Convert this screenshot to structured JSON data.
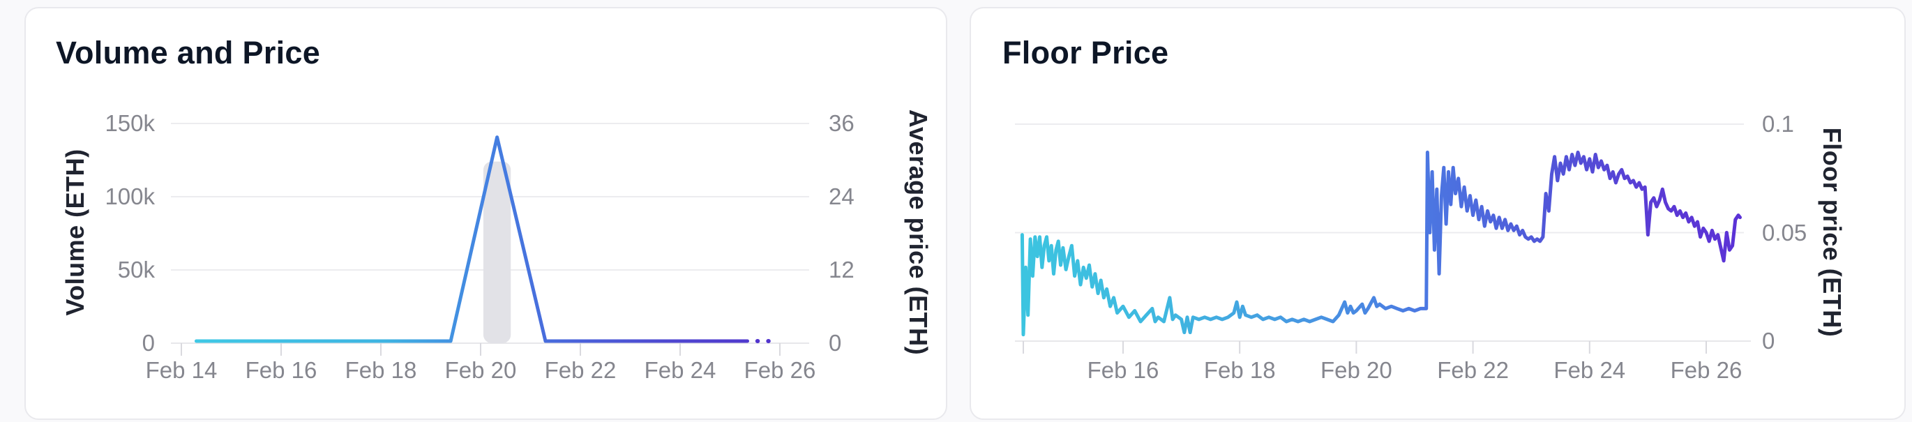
{
  "volume_price_card": {
    "title": "Volume and Price",
    "left_axis": {
      "title": "Volume (ETH)",
      "tick_labels": [
        "150k",
        "100k",
        "50k",
        "0"
      ],
      "tick_values": [
        150000,
        100000,
        50000,
        0
      ]
    },
    "right_axis": {
      "title": "Average price (ETH)",
      "tick_labels": [
        "36",
        "24",
        "12",
        "0"
      ],
      "tick_values": [
        36,
        24,
        12,
        0
      ]
    },
    "x_axis": {
      "tick_labels": [
        "Feb 14",
        "Feb 16",
        "Feb 18",
        "Feb 20",
        "Feb 22",
        "Feb 24",
        "Feb 26"
      ],
      "tick_days": [
        14,
        16,
        18,
        20,
        22,
        24,
        26
      ]
    }
  },
  "floor_price_card": {
    "title": "Floor Price",
    "right_axis": {
      "title": "Floor price (ETH)",
      "tick_labels": [
        "0.1",
        "0.05",
        "0"
      ],
      "tick_values": [
        0.1,
        0.05,
        0
      ]
    },
    "x_axis": {
      "tick_labels": [
        "Feb 16",
        "Feb 18",
        "Feb 20",
        "Feb 22",
        "Feb 24",
        "Feb 26"
      ],
      "tick_days": [
        16,
        18,
        20,
        22,
        24,
        26
      ]
    }
  },
  "colors": {
    "card_bg": "#ffffff",
    "card_border": "#e9e9ed",
    "page_bg": "#f9f9fb",
    "grid": "#ececef",
    "axis_line": "#e7e7ea",
    "tick_mark": "#d9d9de",
    "tick_text": "#85868e",
    "axis_title_text": "#202430",
    "title_text": "#0d1626",
    "volume_bar": "#e2e2e7",
    "line_cyan": "#3dc6e3",
    "line_blue": "#4579e1",
    "line_purple": "#5133cd"
  },
  "chart_data": [
    {
      "type": "line",
      "title": "Volume and Price",
      "x_unit": "day of February",
      "x_tick_labels": [
        "Feb 14",
        "Feb 16",
        "Feb 18",
        "Feb 20",
        "Feb 22",
        "Feb 24",
        "Feb 26"
      ],
      "x_range": [
        13.95,
        26.6
      ],
      "ylabel_left": "Volume (ETH)",
      "ylim_left": [
        0,
        150000
      ],
      "yticks_left": [
        0,
        50000,
        100000,
        150000
      ],
      "ylabel_right": "Average price (ETH)",
      "ylim_right": [
        0,
        36
      ],
      "yticks_right": [
        0,
        12,
        24,
        36
      ],
      "grid": "horizontal",
      "legend": "none",
      "series": [
        {
          "name": "Volume",
          "type": "bar",
          "axis": "left",
          "color": "#e2e2e7",
          "bar_width_days": 0.55,
          "points": [
            [
              20.33,
              124000
            ]
          ]
        },
        {
          "name": "Average price",
          "type": "line",
          "axis": "right",
          "gradient": [
            "#3dc6e3",
            "#4579e1",
            "#5133cd"
          ],
          "points": [
            [
              14.3,
              0
            ],
            [
              19.4,
              0
            ],
            [
              20.33,
              33.4
            ],
            [
              21.3,
              0
            ],
            [
              25.35,
              0
            ]
          ],
          "dotted_tail": [
            [
              25.55,
              0
            ],
            [
              25.95,
              0
            ]
          ]
        }
      ]
    },
    {
      "type": "line",
      "title": "Floor Price",
      "x_unit": "day of February",
      "x_tick_labels": [
        "Feb 16",
        "Feb 18",
        "Feb 20",
        "Feb 22",
        "Feb 24",
        "Feb 26"
      ],
      "x_range": [
        14.1,
        26.9
      ],
      "ylabel": "Floor price (ETH)",
      "ylim": [
        0,
        0.1
      ],
      "yticks": [
        0,
        0.05,
        0.1
      ],
      "grid": "horizontal",
      "legend": "none",
      "series": [
        {
          "name": "Floor price",
          "type": "line",
          "gradient": [
            "#3dc6e3",
            "#4579e1",
            "#5b32d6"
          ],
          "points": [
            [
              14.27,
              0.049
            ],
            [
              14.29,
              0.003
            ],
            [
              14.33,
              0.034
            ],
            [
              14.37,
              0.012
            ],
            [
              14.41,
              0.047
            ],
            [
              14.45,
              0.03
            ],
            [
              14.49,
              0.048
            ],
            [
              14.53,
              0.039
            ],
            [
              14.57,
              0.048
            ],
            [
              14.61,
              0.034
            ],
            [
              14.65,
              0.044
            ],
            [
              14.69,
              0.048
            ],
            [
              14.73,
              0.037
            ],
            [
              14.77,
              0.044
            ],
            [
              14.81,
              0.031
            ],
            [
              14.85,
              0.042
            ],
            [
              14.89,
              0.046
            ],
            [
              14.93,
              0.035
            ],
            [
              14.97,
              0.043
            ],
            [
              15.02,
              0.033
            ],
            [
              15.07,
              0.039
            ],
            [
              15.12,
              0.044
            ],
            [
              15.17,
              0.03
            ],
            [
              15.22,
              0.037
            ],
            [
              15.27,
              0.026
            ],
            [
              15.32,
              0.034
            ],
            [
              15.37,
              0.029
            ],
            [
              15.42,
              0.035
            ],
            [
              15.47,
              0.025
            ],
            [
              15.52,
              0.031
            ],
            [
              15.57,
              0.022
            ],
            [
              15.62,
              0.028
            ],
            [
              15.67,
              0.02
            ],
            [
              15.72,
              0.024
            ],
            [
              15.78,
              0.016
            ],
            [
              15.84,
              0.02
            ],
            [
              15.9,
              0.013
            ],
            [
              16.0,
              0.016
            ],
            [
              16.1,
              0.011
            ],
            [
              16.2,
              0.014
            ],
            [
              16.3,
              0.009
            ],
            [
              16.4,
              0.012
            ],
            [
              16.5,
              0.015
            ],
            [
              16.55,
              0.009
            ],
            [
              16.6,
              0.011
            ],
            [
              16.7,
              0.009
            ],
            [
              16.8,
              0.02
            ],
            [
              16.85,
              0.01
            ],
            [
              16.9,
              0.012
            ],
            [
              17.0,
              0.01
            ],
            [
              17.05,
              0.004
            ],
            [
              17.1,
              0.011
            ],
            [
              17.15,
              0.004
            ],
            [
              17.2,
              0.011
            ],
            [
              17.3,
              0.01
            ],
            [
              17.4,
              0.011
            ],
            [
              17.5,
              0.01
            ],
            [
              17.6,
              0.011
            ],
            [
              17.7,
              0.01
            ],
            [
              17.8,
              0.011
            ],
            [
              17.9,
              0.013
            ],
            [
              17.95,
              0.018
            ],
            [
              18.0,
              0.011
            ],
            [
              18.05,
              0.016
            ],
            [
              18.1,
              0.012
            ],
            [
              18.2,
              0.011
            ],
            [
              18.3,
              0.012
            ],
            [
              18.4,
              0.01
            ],
            [
              18.5,
              0.011
            ],
            [
              18.6,
              0.01
            ],
            [
              18.7,
              0.011
            ],
            [
              18.8,
              0.009
            ],
            [
              18.9,
              0.01
            ],
            [
              19.0,
              0.009
            ],
            [
              19.1,
              0.01
            ],
            [
              19.2,
              0.009
            ],
            [
              19.3,
              0.01
            ],
            [
              19.4,
              0.011
            ],
            [
              19.5,
              0.01
            ],
            [
              19.6,
              0.009
            ],
            [
              19.7,
              0.012
            ],
            [
              19.8,
              0.018
            ],
            [
              19.85,
              0.013
            ],
            [
              19.9,
              0.016
            ],
            [
              19.95,
              0.013
            ],
            [
              20.0,
              0.014
            ],
            [
              20.1,
              0.017
            ],
            [
              20.15,
              0.013
            ],
            [
              20.2,
              0.015
            ],
            [
              20.3,
              0.02
            ],
            [
              20.35,
              0.016
            ],
            [
              20.4,
              0.017
            ],
            [
              20.5,
              0.015
            ],
            [
              20.6,
              0.016
            ],
            [
              20.7,
              0.015
            ],
            [
              20.8,
              0.014
            ],
            [
              20.9,
              0.015
            ],
            [
              21.0,
              0.014
            ],
            [
              21.1,
              0.015
            ],
            [
              21.2,
              0.015
            ],
            [
              21.22,
              0.087
            ],
            [
              21.26,
              0.05
            ],
            [
              21.3,
              0.078
            ],
            [
              21.34,
              0.042
            ],
            [
              21.38,
              0.07
            ],
            [
              21.42,
              0.031
            ],
            [
              21.46,
              0.067
            ],
            [
              21.5,
              0.08
            ],
            [
              21.54,
              0.054
            ],
            [
              21.58,
              0.078
            ],
            [
              21.62,
              0.063
            ],
            [
              21.66,
              0.08
            ],
            [
              21.7,
              0.068
            ],
            [
              21.75,
              0.075
            ],
            [
              21.8,
              0.062
            ],
            [
              21.85,
              0.071
            ],
            [
              21.9,
              0.06
            ],
            [
              21.95,
              0.067
            ],
            [
              22.0,
              0.058
            ],
            [
              22.05,
              0.065
            ],
            [
              22.1,
              0.056
            ],
            [
              22.15,
              0.062
            ],
            [
              22.2,
              0.053
            ],
            [
              22.25,
              0.06
            ],
            [
              22.3,
              0.055
            ],
            [
              22.35,
              0.058
            ],
            [
              22.4,
              0.052
            ],
            [
              22.45,
              0.057
            ],
            [
              22.5,
              0.052
            ],
            [
              22.55,
              0.056
            ],
            [
              22.6,
              0.051
            ],
            [
              22.65,
              0.054
            ],
            [
              22.7,
              0.051
            ],
            [
              22.75,
              0.053
            ],
            [
              22.8,
              0.049
            ],
            [
              22.85,
              0.051
            ],
            [
              22.9,
              0.048
            ],
            [
              22.95,
              0.047
            ],
            [
              23.0,
              0.048
            ],
            [
              23.05,
              0.046
            ],
            [
              23.1,
              0.047
            ],
            [
              23.15,
              0.046
            ],
            [
              23.2,
              0.048
            ],
            [
              23.25,
              0.068
            ],
            [
              23.3,
              0.06
            ],
            [
              23.35,
              0.077
            ],
            [
              23.4,
              0.085
            ],
            [
              23.45,
              0.074
            ],
            [
              23.5,
              0.082
            ],
            [
              23.55,
              0.077
            ],
            [
              23.6,
              0.085
            ],
            [
              23.65,
              0.079
            ],
            [
              23.7,
              0.086
            ],
            [
              23.75,
              0.081
            ],
            [
              23.8,
              0.087
            ],
            [
              23.85,
              0.082
            ],
            [
              23.9,
              0.085
            ],
            [
              23.95,
              0.079
            ],
            [
              24.0,
              0.084
            ],
            [
              24.05,
              0.078
            ],
            [
              24.1,
              0.086
            ],
            [
              24.15,
              0.08
            ],
            [
              24.2,
              0.083
            ],
            [
              24.25,
              0.079
            ],
            [
              24.3,
              0.081
            ],
            [
              24.35,
              0.075
            ],
            [
              24.4,
              0.078
            ],
            [
              24.45,
              0.073
            ],
            [
              24.5,
              0.077
            ],
            [
              24.55,
              0.079
            ],
            [
              24.6,
              0.075
            ],
            [
              24.65,
              0.076
            ],
            [
              24.7,
              0.073
            ],
            [
              24.75,
              0.074
            ],
            [
              24.8,
              0.071
            ],
            [
              24.85,
              0.073
            ],
            [
              24.9,
              0.07
            ],
            [
              24.95,
              0.071
            ],
            [
              25.0,
              0.049
            ],
            [
              25.05,
              0.064
            ],
            [
              25.1,
              0.066
            ],
            [
              25.15,
              0.062
            ],
            [
              25.2,
              0.065
            ],
            [
              25.25,
              0.07
            ],
            [
              25.3,
              0.064
            ],
            [
              25.35,
              0.061
            ],
            [
              25.4,
              0.06
            ],
            [
              25.45,
              0.062
            ],
            [
              25.5,
              0.058
            ],
            [
              25.55,
              0.06
            ],
            [
              25.6,
              0.057
            ],
            [
              25.65,
              0.059
            ],
            [
              25.7,
              0.055
            ],
            [
              25.75,
              0.057
            ],
            [
              25.8,
              0.053
            ],
            [
              25.85,
              0.055
            ],
            [
              25.9,
              0.048
            ],
            [
              25.95,
              0.052
            ],
            [
              26.0,
              0.05
            ],
            [
              26.05,
              0.046
            ],
            [
              26.1,
              0.051
            ],
            [
              26.15,
              0.047
            ],
            [
              26.2,
              0.049
            ],
            [
              26.25,
              0.043
            ],
            [
              26.3,
              0.037
            ],
            [
              26.35,
              0.05
            ],
            [
              26.4,
              0.042
            ],
            [
              26.45,
              0.044
            ],
            [
              26.5,
              0.056
            ],
            [
              26.55,
              0.058
            ],
            [
              26.58,
              0.057
            ]
          ]
        }
      ]
    }
  ]
}
